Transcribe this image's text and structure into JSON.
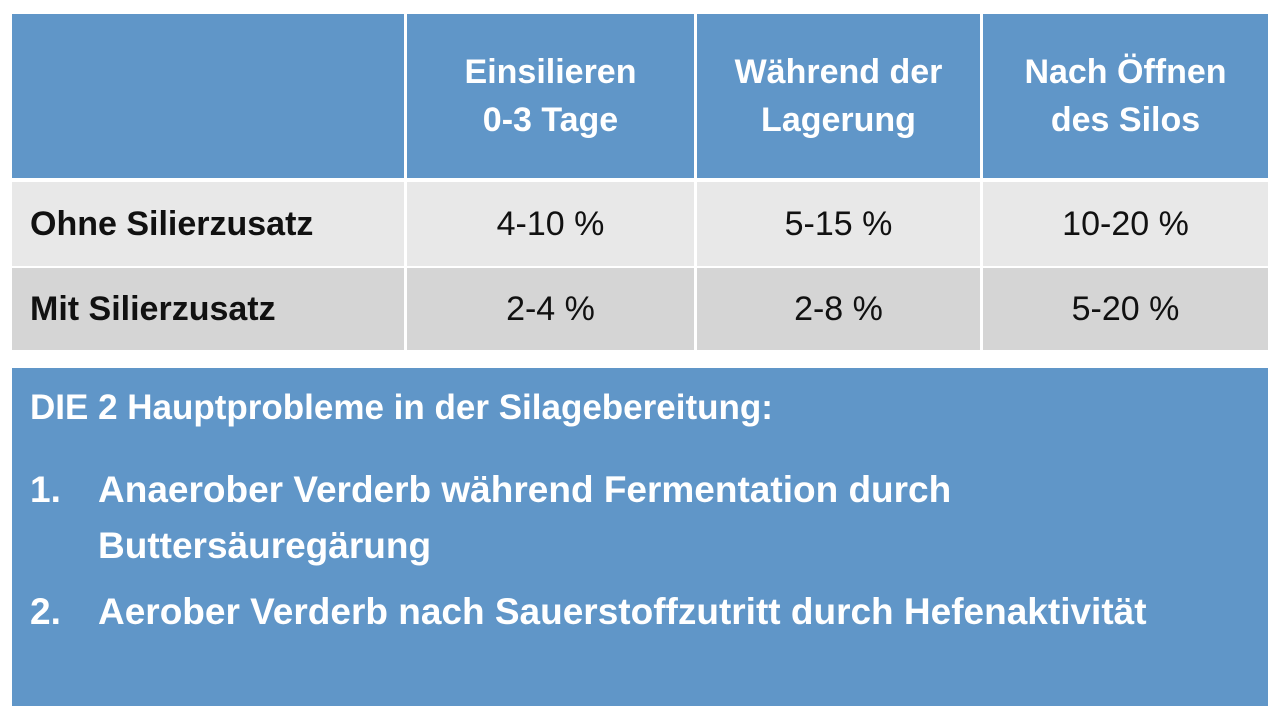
{
  "table": {
    "header": [
      null,
      [
        "Einsilieren",
        "0-3 Tage"
      ],
      [
        "Während der",
        "Lagerung"
      ],
      [
        "Nach Öffnen",
        "des Silos"
      ]
    ],
    "rows": [
      [
        "Ohne Silierzusatz",
        "4-10 %",
        "5-15 %",
        "10-20 %"
      ],
      [
        "Mit Silierzusatz",
        "2-4 %",
        "2-8 %",
        "5-20 %"
      ]
    ]
  },
  "box": {
    "title": "DIE 2 Hauptprobleme in der Silagebereitung:",
    "items": [
      {
        "number": "1.",
        "text": "Anaerober Verderb während Fermentation durch Buttersäuregärung"
      },
      {
        "number": "2.",
        "text": "Aerober Verderb nach Sauerstoffzutritt durch Hefenaktivität"
      }
    ]
  }
}
